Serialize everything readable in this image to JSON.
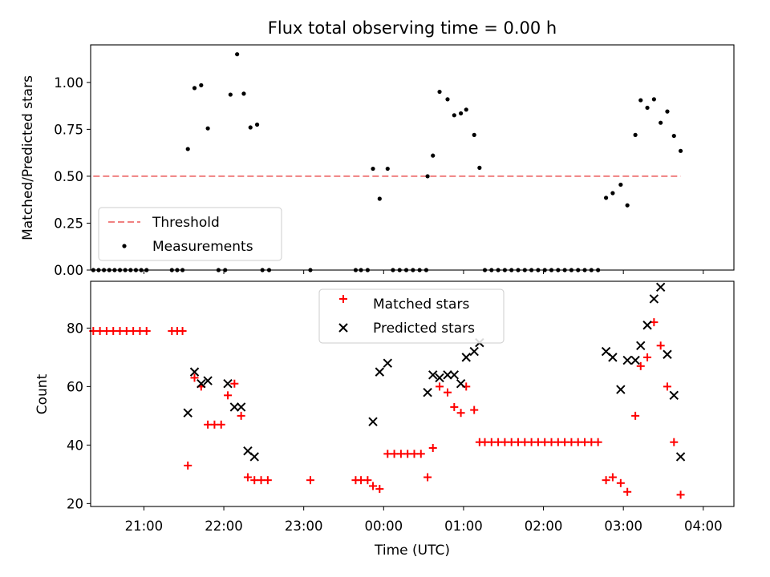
{
  "chart_data": [
    {
      "type": "scatter",
      "title": "Flux total observing time = 0.00 h",
      "xlabel": "",
      "ylabel": "Matched/Predicted stars",
      "ylim": [
        0,
        1.2
      ],
      "xlim": [
        -220,
        263
      ],
      "x_unit": "minutes relative to 00:00 UTC",
      "yticks": [
        0.0,
        0.25,
        0.5,
        0.75,
        1.0
      ],
      "ytick_labels": [
        "0.00",
        "0.25",
        "0.50",
        "0.75",
        "1.00"
      ],
      "grid": false,
      "legend_position": "lower-left",
      "threshold": {
        "name": "Threshold",
        "color": "#f08080",
        "y": 0.5,
        "x_range": [
          -218,
          223
        ]
      },
      "series": [
        {
          "name": "Measurements",
          "color": "#000000",
          "marker": "dot",
          "points": [
            [
              -218,
              0
            ],
            [
              -214,
              0
            ],
            [
              -210,
              0
            ],
            [
              -206,
              0
            ],
            [
              -202,
              0
            ],
            [
              -198,
              0
            ],
            [
              -194,
              0
            ],
            [
              -190,
              0
            ],
            [
              -186,
              0
            ],
            [
              -182,
              0
            ],
            [
              -178,
              0
            ],
            [
              -159,
              0
            ],
            [
              -155,
              0
            ],
            [
              -151,
              0
            ],
            [
              -147,
              0.645
            ],
            [
              -142,
              0.97
            ],
            [
              -137,
              0.985
            ],
            [
              -132,
              0.755
            ],
            [
              -124,
              0
            ],
            [
              -119,
              0
            ],
            [
              -115,
              0.935
            ],
            [
              -110,
              1.15
            ],
            [
              -105,
              0.94
            ],
            [
              -100,
              0.76
            ],
            [
              -95,
              0.775
            ],
            [
              -91,
              0
            ],
            [
              -86,
              0
            ],
            [
              -55,
              0
            ],
            [
              -21,
              0
            ],
            [
              -17,
              0
            ],
            [
              -12,
              0
            ],
            [
              -8,
              0.54
            ],
            [
              -3,
              0.38
            ],
            [
              3,
              0.54
            ],
            [
              7,
              0
            ],
            [
              12,
              0
            ],
            [
              17,
              0
            ],
            [
              22,
              0
            ],
            [
              27,
              0
            ],
            [
              32,
              0
            ],
            [
              33,
              0.5
            ],
            [
              37,
              0.61
            ],
            [
              42,
              0.95
            ],
            [
              48,
              0.91
            ],
            [
              53,
              0.825
            ],
            [
              58,
              0.835
            ],
            [
              62,
              0.855
            ],
            [
              68,
              0.72
            ],
            [
              72,
              0.545
            ],
            [
              76,
              0
            ],
            [
              81,
              0
            ],
            [
              86,
              0
            ],
            [
              91,
              0
            ],
            [
              96,
              0
            ],
            [
              101,
              0
            ],
            [
              106,
              0
            ],
            [
              111,
              0
            ],
            [
              116,
              0
            ],
            [
              121,
              0
            ],
            [
              126,
              0
            ],
            [
              131,
              0
            ],
            [
              136,
              0
            ],
            [
              141,
              0
            ],
            [
              146,
              0
            ],
            [
              151,
              0
            ],
            [
              156,
              0
            ],
            [
              161,
              0
            ],
            [
              167,
              0.385
            ],
            [
              172,
              0.41
            ],
            [
              178,
              0.455
            ],
            [
              183,
              0.345
            ],
            [
              189,
              0.72
            ],
            [
              193,
              0.905
            ],
            [
              198,
              0.865
            ],
            [
              203,
              0.91
            ],
            [
              208,
              0.785
            ],
            [
              213,
              0.845
            ],
            [
              218,
              0.715
            ],
            [
              223,
              0.635
            ]
          ]
        }
      ]
    },
    {
      "type": "scatter",
      "xlabel": "Time (UTC)",
      "ylabel": "Count",
      "ylim": [
        19,
        96
      ],
      "xlim": [
        -220,
        263
      ],
      "x_unit": "minutes relative to 00:00 UTC",
      "yticks": [
        20,
        40,
        60,
        80
      ],
      "ytick_labels": [
        "20",
        "40",
        "60",
        "80"
      ],
      "xticks": [
        -180,
        -120,
        -60,
        0,
        60,
        120,
        180,
        240
      ],
      "xtick_labels": [
        "21:00",
        "22:00",
        "23:00",
        "00:00",
        "01:00",
        "02:00",
        "03:00",
        "04:00"
      ],
      "grid": false,
      "legend_position": "upper-center",
      "series": [
        {
          "name": "Matched stars",
          "color": "#ff0000",
          "marker": "plus",
          "points": [
            [
              -218,
              79
            ],
            [
              -213,
              79
            ],
            [
              -208,
              79
            ],
            [
              -203,
              79
            ],
            [
              -198,
              79
            ],
            [
              -193,
              79
            ],
            [
              -188,
              79
            ],
            [
              -183,
              79
            ],
            [
              -178,
              79
            ],
            [
              -159,
              79
            ],
            [
              -155,
              79
            ],
            [
              -151,
              79
            ],
            [
              -147,
              33
            ],
            [
              -142,
              63
            ],
            [
              -137,
              60
            ],
            [
              -132,
              47
            ],
            [
              -127,
              47
            ],
            [
              -122,
              47
            ],
            [
              -117,
              57
            ],
            [
              -112,
              61
            ],
            [
              -107,
              50
            ],
            [
              -102,
              29
            ],
            [
              -97,
              28
            ],
            [
              -92,
              28
            ],
            [
              -87,
              28
            ],
            [
              -55,
              28
            ],
            [
              -21,
              28
            ],
            [
              -17,
              28
            ],
            [
              -12,
              28
            ],
            [
              -8,
              26
            ],
            [
              -3,
              25
            ],
            [
              3,
              37
            ],
            [
              8,
              37
            ],
            [
              13,
              37
            ],
            [
              18,
              37
            ],
            [
              23,
              37
            ],
            [
              28,
              37
            ],
            [
              33,
              29
            ],
            [
              37,
              39
            ],
            [
              42,
              60
            ],
            [
              48,
              58
            ],
            [
              53,
              53
            ],
            [
              58,
              51
            ],
            [
              62,
              60
            ],
            [
              68,
              52
            ],
            [
              72,
              41
            ],
            [
              76,
              41
            ],
            [
              81,
              41
            ],
            [
              86,
              41
            ],
            [
              91,
              41
            ],
            [
              96,
              41
            ],
            [
              101,
              41
            ],
            [
              106,
              41
            ],
            [
              111,
              41
            ],
            [
              116,
              41
            ],
            [
              121,
              41
            ],
            [
              126,
              41
            ],
            [
              131,
              41
            ],
            [
              136,
              41
            ],
            [
              141,
              41
            ],
            [
              146,
              41
            ],
            [
              151,
              41
            ],
            [
              156,
              41
            ],
            [
              161,
              41
            ],
            [
              167,
              28
            ],
            [
              172,
              29
            ],
            [
              178,
              27
            ],
            [
              183,
              24
            ],
            [
              189,
              50
            ],
            [
              193,
              67
            ],
            [
              198,
              70
            ],
            [
              203,
              82
            ],
            [
              208,
              74
            ],
            [
              213,
              60
            ],
            [
              218,
              41
            ],
            [
              223,
              23
            ]
          ]
        },
        {
          "name": "Predicted stars",
          "color": "#000000",
          "marker": "x",
          "points": [
            [
              -147,
              51
            ],
            [
              -142,
              65
            ],
            [
              -137,
              61
            ],
            [
              -132,
              62
            ],
            [
              -117,
              61
            ],
            [
              -112,
              53
            ],
            [
              -107,
              53
            ],
            [
              -102,
              38
            ],
            [
              -97,
              36
            ],
            [
              -8,
              48
            ],
            [
              -3,
              65
            ],
            [
              3,
              68
            ],
            [
              33,
              58
            ],
            [
              37,
              64
            ],
            [
              42,
              63
            ],
            [
              48,
              64
            ],
            [
              53,
              64
            ],
            [
              58,
              61
            ],
            [
              62,
              70
            ],
            [
              68,
              72
            ],
            [
              72,
              75
            ],
            [
              167,
              72
            ],
            [
              172,
              70
            ],
            [
              178,
              59
            ],
            [
              183,
              69
            ],
            [
              189,
              69
            ],
            [
              193,
              74
            ],
            [
              198,
              81
            ],
            [
              203,
              90
            ],
            [
              208,
              94
            ],
            [
              213,
              71
            ],
            [
              218,
              57
            ],
            [
              223,
              36
            ]
          ]
        }
      ]
    }
  ]
}
